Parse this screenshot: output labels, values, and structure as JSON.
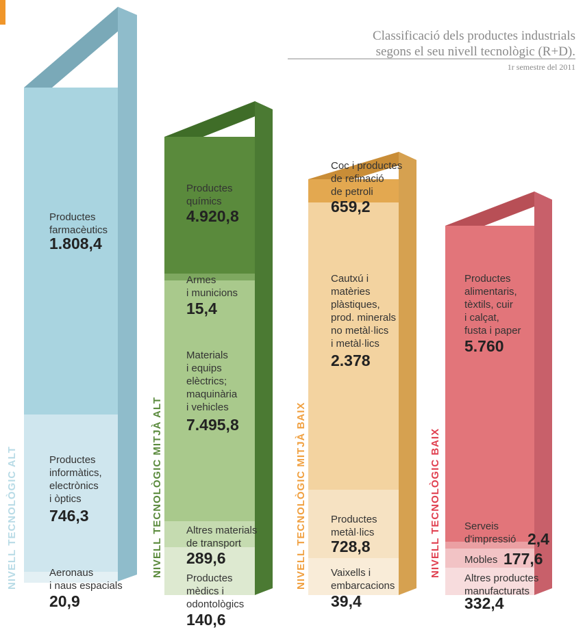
{
  "header": {
    "title_lines": [
      "Classificació dels productes industrials",
      "segons el seu nivell tecnològic (R+D)."
    ],
    "date": "1r semestre del 2011"
  },
  "columns": [
    {
      "level": "NIVELL TECNOLÒGIC ALT",
      "segments": [
        {
          "lines": [
            "Productes",
            "farmacèutics"
          ],
          "value": "1.808,4"
        },
        {
          "lines": [
            "Productes",
            "informàtics,",
            "electrònics",
            "i òptics"
          ],
          "value": "746,3"
        },
        {
          "lines": [
            "Aeronaus",
            "i naus espacials"
          ],
          "value": "20,9"
        }
      ]
    },
    {
      "level": "NIVELL TECNOLÒGIC MITJÀ ALT",
      "segments": [
        {
          "lines": [
            "Productes",
            "químics"
          ],
          "value": "4.920,8"
        },
        {
          "lines": [
            "Armes",
            "i municions"
          ],
          "value": "15,4"
        },
        {
          "lines": [
            "Materials",
            "i equips",
            "elèctrics;",
            "maquinària",
            "i vehicles"
          ],
          "value": "7.495,8"
        },
        {
          "lines": [
            "Altres materials",
            "de transport"
          ],
          "value": "289,6"
        },
        {
          "lines": [
            "Productes",
            "mèdics i",
            "odontològics"
          ],
          "value": "140,6"
        }
      ]
    },
    {
      "level": "NIVELL TECNOLÒGIC MITJÀ BAIX",
      "segments": [
        {
          "lines": [
            "Coc i productes",
            "de refinació",
            "de petroli"
          ],
          "value": "659,2"
        },
        {
          "lines": [
            "Cautxú i",
            "matèries",
            "plàstiques,",
            "prod. minerals",
            "no metàl·lics",
            "i metàl·lics"
          ],
          "value": "2.378"
        },
        {
          "lines": [
            "Productes",
            "metàl·lics"
          ],
          "value": "728,8"
        },
        {
          "lines": [
            "Vaixells i",
            "embarcacions"
          ],
          "value": "39,4"
        }
      ]
    },
    {
      "level": "NIVELL TECNOLÒGIC BAIX",
      "segments": [
        {
          "lines": [
            "Productes",
            "alimentaris,",
            "tèxtils, cuir",
            "i calçat,",
            "fusta i paper"
          ],
          "value": "5.760"
        },
        {
          "lines": [
            "Serveis",
            "d'impressió"
          ],
          "value": "2,4"
        },
        {
          "lines": [
            "Mobles"
          ],
          "value": "177,6"
        },
        {
          "lines": [
            "Altres productes",
            "manufacturats"
          ],
          "value": "332,4"
        }
      ]
    }
  ]
}
